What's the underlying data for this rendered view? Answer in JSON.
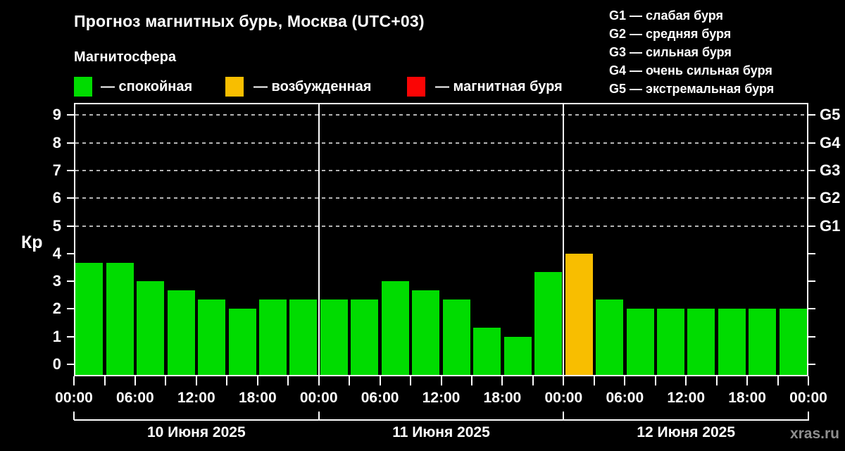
{
  "header": {
    "title": "Прогноз магнитных бурь, Москва (UTC+03)",
    "subtitle": "Магнитосфера"
  },
  "legend": [
    {
      "key": "quiet",
      "label": "— спокойная"
    },
    {
      "key": "excited",
      "label": "— возбужденная"
    },
    {
      "key": "storm",
      "label": "— магнитная буря"
    }
  ],
  "storm_scale": [
    "G1 — слабая буря",
    "G2 — средняя буря",
    "G3 — сильная буря",
    "G4 — очень сильная буря",
    "G5 — экстремальная буря"
  ],
  "watermark": "xras.ru",
  "chart_data": {
    "type": "bar",
    "title": "Прогноз магнитных бурь, Москва (UTC+03)",
    "ylabel": "Кр",
    "ylim": [
      -0.45,
      9.45
    ],
    "yticks": [
      0,
      1,
      2,
      3,
      4,
      5,
      6,
      7,
      8,
      9
    ],
    "grid_levels": [
      5,
      6,
      7,
      8,
      9
    ],
    "right_axis": [
      {
        "kp": 5,
        "label": "G1"
      },
      {
        "kp": 6,
        "label": "G2"
      },
      {
        "kp": 7,
        "label": "G3"
      },
      {
        "kp": 8,
        "label": "G4"
      },
      {
        "kp": 9,
        "label": "G5"
      }
    ],
    "hours_per_bar": 3,
    "time_labels": [
      "00:00",
      "06:00",
      "12:00",
      "18:00",
      "00:00",
      "06:00",
      "12:00",
      "18:00",
      "00:00",
      "06:00",
      "12:00",
      "18:00",
      "00:00"
    ],
    "state_colors": {
      "quiet": "#00dc00",
      "excited": "#f8be00",
      "storm": "#fa0505"
    },
    "days": [
      {
        "label": "10 Июня 2025",
        "bars": [
          {
            "kp": 3.67,
            "state": "quiet"
          },
          {
            "kp": 3.67,
            "state": "quiet"
          },
          {
            "kp": 3.0,
            "state": "quiet"
          },
          {
            "kp": 2.67,
            "state": "quiet"
          },
          {
            "kp": 2.33,
            "state": "quiet"
          },
          {
            "kp": 2.0,
            "state": "quiet"
          },
          {
            "kp": 2.33,
            "state": "quiet"
          },
          {
            "kp": 2.33,
            "state": "quiet"
          }
        ]
      },
      {
        "label": "11 Июня 2025",
        "bars": [
          {
            "kp": 2.33,
            "state": "quiet"
          },
          {
            "kp": 2.33,
            "state": "quiet"
          },
          {
            "kp": 3.0,
            "state": "quiet"
          },
          {
            "kp": 2.67,
            "state": "quiet"
          },
          {
            "kp": 2.33,
            "state": "quiet"
          },
          {
            "kp": 1.33,
            "state": "quiet"
          },
          {
            "kp": 1.0,
            "state": "quiet"
          },
          {
            "kp": 3.33,
            "state": "quiet"
          }
        ]
      },
      {
        "label": "12 Июня 2025",
        "bars": [
          {
            "kp": 4.0,
            "state": "excited"
          },
          {
            "kp": 2.33,
            "state": "quiet"
          },
          {
            "kp": 2.0,
            "state": "quiet"
          },
          {
            "kp": 2.0,
            "state": "quiet"
          },
          {
            "kp": 2.0,
            "state": "quiet"
          },
          {
            "kp": 2.0,
            "state": "quiet"
          },
          {
            "kp": 2.0,
            "state": "quiet"
          },
          {
            "kp": 2.0,
            "state": "quiet"
          }
        ]
      }
    ]
  }
}
